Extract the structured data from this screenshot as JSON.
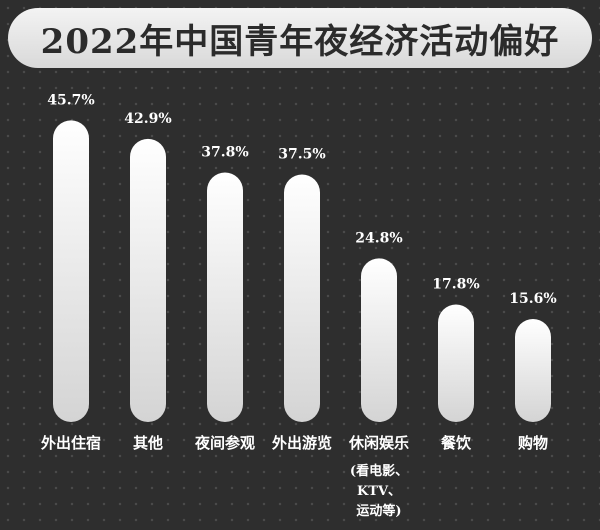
{
  "title": "2022年中国青年夜经济活动偏好",
  "chart_data": {
    "type": "bar",
    "categories": [
      "外出住宿",
      "其他",
      "夜间参观",
      "外出游览",
      "休闲娱乐",
      "餐饮",
      "购物"
    ],
    "values": [
      45.7,
      42.9,
      37.8,
      37.5,
      24.8,
      17.8,
      15.6
    ],
    "value_labels": [
      "45.7%",
      "42.9%",
      "37.8%",
      "37.5%",
      "24.8%",
      "17.8%",
      "15.6%"
    ],
    "category_notes": [
      "",
      "",
      "",
      "",
      "(看电影、\nKTV、\n运动等)",
      "",
      ""
    ],
    "ylim": [
      0,
      50
    ],
    "grid": false,
    "colors": {
      "bar_top": "#ffffff",
      "bar_bottom": "#d4d4d4",
      "background": "#2e2e2e"
    }
  }
}
